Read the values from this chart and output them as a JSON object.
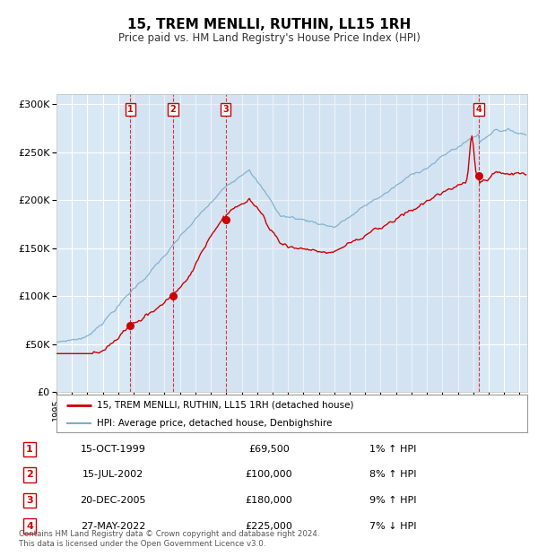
{
  "title": "15, TREM MENLLI, RUTHIN, LL15 1RH",
  "subtitle": "Price paid vs. HM Land Registry's House Price Index (HPI)",
  "red_line_label": "15, TREM MENLLI, RUTHIN, LL15 1RH (detached house)",
  "blue_line_label": "HPI: Average price, detached house, Denbighshire",
  "transactions": [
    {
      "num": 1,
      "date": "15-OCT-1999",
      "price": 69500,
      "pct": "1%",
      "dir": "↑"
    },
    {
      "num": 2,
      "date": "15-JUL-2002",
      "price": 100000,
      "pct": "8%",
      "dir": "↑"
    },
    {
      "num": 3,
      "date": "20-DEC-2005",
      "price": 180000,
      "pct": "9%",
      "dir": "↑"
    },
    {
      "num": 4,
      "date": "27-MAY-2022",
      "price": 225000,
      "pct": "7%",
      "dir": "↓"
    }
  ],
  "xmin": 1995.0,
  "xmax": 2025.5,
  "ymin": 0,
  "ymax": 310000,
  "yticks": [
    0,
    50000,
    100000,
    150000,
    200000,
    250000,
    300000
  ],
  "ytick_labels": [
    "£0",
    "£50K",
    "£100K",
    "£150K",
    "£200K",
    "£250K",
    "£300K"
  ],
  "background_color": "#d8e8f5",
  "grid_color": "#ffffff",
  "red_color": "#cc0000",
  "blue_color": "#7aadcc",
  "footer": "Contains HM Land Registry data © Crown copyright and database right 2024.\nThis data is licensed under the Open Government Licence v3.0."
}
